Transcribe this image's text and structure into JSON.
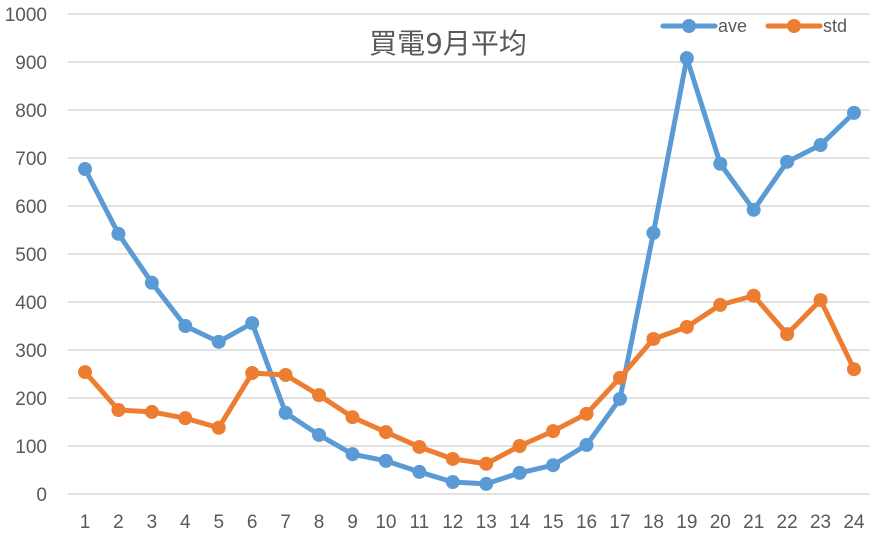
{
  "chart_data": {
    "type": "line",
    "title": "買電9月平均",
    "xlabel": "",
    "ylabel": "",
    "x": [
      1,
      2,
      3,
      4,
      5,
      6,
      7,
      8,
      9,
      10,
      11,
      12,
      13,
      14,
      15,
      16,
      17,
      18,
      19,
      20,
      21,
      22,
      23,
      24
    ],
    "ylim": [
      0,
      1000
    ],
    "yticks": [
      0,
      100,
      200,
      300,
      400,
      500,
      600,
      700,
      800,
      900,
      1000
    ],
    "grid": true,
    "legend_position": "top-right",
    "series": [
      {
        "name": "ave",
        "color": "#5B9BD5",
        "values": [
          677,
          542,
          440,
          350,
          317,
          356,
          169,
          123,
          83,
          69,
          46,
          25,
          21,
          44,
          60,
          102,
          198,
          544,
          908,
          688,
          592,
          692,
          727,
          794
        ]
      },
      {
        "name": "std",
        "color": "#ED7D31",
        "values": [
          254,
          175,
          171,
          158,
          138,
          252,
          248,
          206,
          160,
          129,
          98,
          73,
          63,
          100,
          131,
          167,
          242,
          323,
          348,
          394,
          413,
          333,
          404,
          260
        ]
      }
    ]
  },
  "colors": {
    "grid": "#D9D9D9",
    "text": "#595959",
    "background": "#FFFFFF"
  }
}
